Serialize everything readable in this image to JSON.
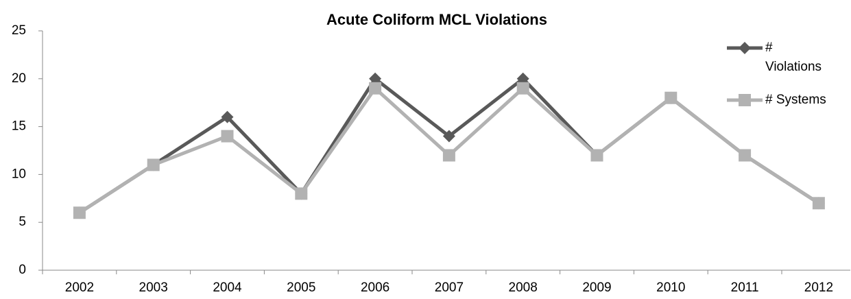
{
  "chart_data": {
    "type": "line",
    "title": "Acute Coliform MCL Violations",
    "categories": [
      "2002",
      "2003",
      "2004",
      "2005",
      "2006",
      "2007",
      "2008",
      "2009",
      "2010",
      "2011",
      "2012"
    ],
    "series": [
      {
        "name": "# Violations",
        "color": "#595959",
        "marker": "diamond",
        "values": [
          6,
          11,
          16,
          8,
          20,
          14,
          20,
          12,
          18,
          12,
          7
        ]
      },
      {
        "name": "# Systems",
        "color": "#b2b2b2",
        "marker": "square",
        "values": [
          6,
          11,
          14,
          8,
          19,
          12,
          19,
          12,
          18,
          12,
          7
        ]
      }
    ],
    "ylim": [
      0,
      25
    ],
    "yticks": [
      0,
      5,
      10,
      15,
      20,
      25
    ],
    "grid": false,
    "legend": "right"
  }
}
